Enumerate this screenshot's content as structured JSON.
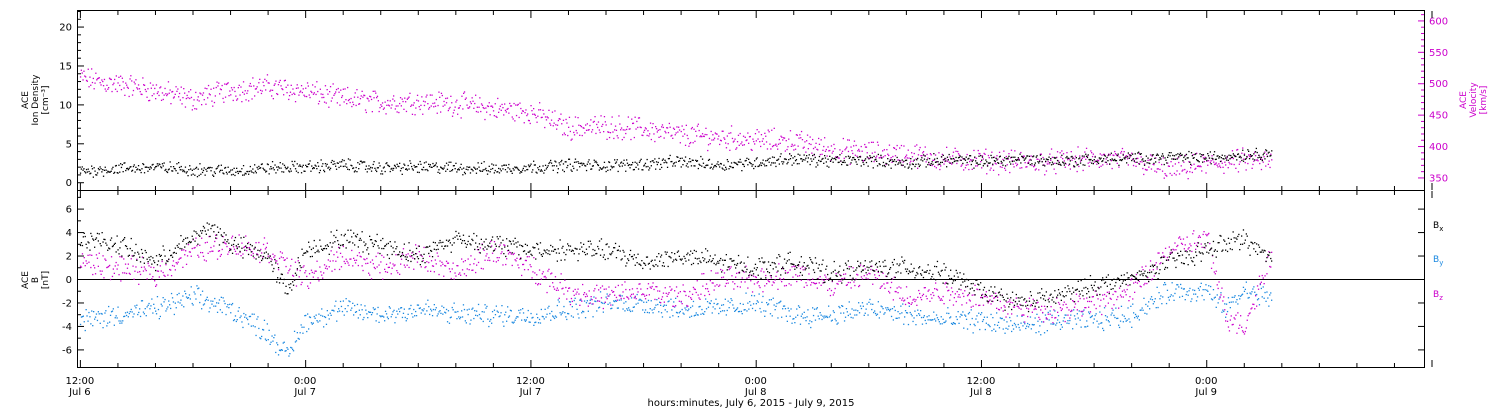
{
  "chart_data": [
    {
      "type": "scatter",
      "title": "",
      "xlabel": "hours:minutes, July 6, 2015 - July 9, 2015",
      "x_ticks": [
        {
          "time": "12:00",
          "date": "Jul 6",
          "hours": 12
        },
        {
          "time": "0:00",
          "date": "Jul 7",
          "hours": 24
        },
        {
          "time": "12:00",
          "date": "Jul 7",
          "hours": 36
        },
        {
          "time": "0:00",
          "date": "Jul 8",
          "hours": 48
        },
        {
          "time": "12:00",
          "date": "Jul 8",
          "hours": 60
        },
        {
          "time": "0:00",
          "date": "Jul 9",
          "hours": 72
        }
      ],
      "x_axis_note": "hours measured from Jul 6 00:00",
      "xlim_hours": [
        11.9,
        83.6
      ],
      "ylabel_left": [
        "ACE",
        "Ion Density",
        "[cm⁻³]"
      ],
      "ylabel_right": [
        "ACE",
        "Velocity",
        "[km/s]"
      ],
      "ylim_left": [
        -1,
        22
      ],
      "ylim_right": [
        330,
        615
      ],
      "yticks_left": [
        0,
        5,
        10,
        15,
        20
      ],
      "yticks_right": [
        350,
        400,
        450,
        500,
        550,
        600
      ],
      "series": [
        {
          "name": "ACE Ion Density",
          "axis": "left",
          "color": "#000000",
          "x_hours": [
            12,
            14,
            16,
            18,
            20,
            22,
            24,
            26,
            28,
            30,
            32,
            34,
            36,
            38,
            40,
            42,
            44,
            46,
            48,
            50,
            52,
            54,
            56,
            58,
            60,
            62,
            64,
            66,
            68,
            70,
            72,
            74,
            75.5
          ],
          "values": [
            1.5,
            1.8,
            2.0,
            1.7,
            1.5,
            1.9,
            2.0,
            2.3,
            1.9,
            2.0,
            1.9,
            1.8,
            2.0,
            2.3,
            2.2,
            2.4,
            2.7,
            2.3,
            2.6,
            3.1,
            2.8,
            2.9,
            2.5,
            3.0,
            2.7,
            3.1,
            2.8,
            3.0,
            3.1,
            3.3,
            3.2,
            3.6,
            3.8
          ]
        },
        {
          "name": "ACE Velocity",
          "axis": "right",
          "color": "#cc00cc",
          "x_hours": [
            12,
            13,
            15,
            16.5,
            18,
            20,
            22,
            24,
            25.5,
            28,
            30,
            32,
            34,
            36,
            38,
            40,
            42,
            44,
            46,
            48,
            50,
            52,
            54,
            56,
            58,
            60,
            62,
            64,
            66,
            68,
            70,
            71.5,
            72,
            74,
            75.5
          ],
          "values": [
            510,
            503,
            495,
            485,
            475,
            490,
            495,
            488,
            478,
            470,
            472,
            468,
            460,
            455,
            430,
            432,
            428,
            418,
            415,
            410,
            408,
            395,
            390,
            388,
            380,
            378,
            375,
            376,
            380,
            378,
            362,
            370,
            372,
            378,
            375
          ]
        }
      ]
    },
    {
      "type": "scatter",
      "title": "",
      "ylabel": [
        "ACE",
        "B",
        "[nT]"
      ],
      "ylim": [
        -7.5,
        7.5
      ],
      "yticks": [
        -6,
        -4,
        -2,
        0,
        2,
        4,
        6
      ],
      "zero_line": true,
      "legend": [
        "Bx",
        "By",
        "Bz"
      ],
      "legend_position": "right",
      "series": [
        {
          "name": "Bx",
          "color": "#000000",
          "x_hours": [
            12,
            14,
            16,
            18,
            19,
            20,
            22,
            23,
            24,
            26,
            28,
            30,
            32,
            34,
            36,
            38,
            40,
            42,
            44,
            46,
            48,
            50,
            52,
            54,
            56,
            58,
            60,
            62,
            64,
            66,
            68,
            70,
            72,
            74,
            75.5
          ],
          "values": [
            3.5,
            3.0,
            1.5,
            3.5,
            4.5,
            3.0,
            2.0,
            -1.0,
            2.5,
            3.5,
            3.0,
            2.0,
            3.5,
            3.0,
            2.5,
            2.5,
            2.5,
            1.5,
            2.0,
            1.5,
            1.0,
            1.5,
            0.5,
            1.0,
            1.0,
            0.5,
            -1.0,
            -2.0,
            -1.5,
            -0.5,
            0.0,
            1.5,
            2.5,
            3.5,
            1.5
          ]
        },
        {
          "name": "By",
          "color": "#1a88e0",
          "x_hours": [
            12,
            14,
            16,
            18,
            20,
            22,
            23,
            24,
            26,
            28,
            30,
            32,
            34,
            36,
            38,
            40,
            42,
            44,
            46,
            48,
            50,
            52,
            54,
            56,
            58,
            60,
            62,
            64,
            66,
            68,
            70,
            72,
            73,
            74,
            75.5
          ],
          "values": [
            -3.5,
            -3.0,
            -2.5,
            -1.5,
            -2.5,
            -4.5,
            -6.5,
            -3.5,
            -2.5,
            -3.0,
            -2.5,
            -3.0,
            -3.0,
            -3.0,
            -2.5,
            -2.0,
            -2.0,
            -2.5,
            -2.5,
            -2.0,
            -3.0,
            -3.0,
            -2.5,
            -3.0,
            -3.5,
            -3.5,
            -4.0,
            -3.5,
            -3.5,
            -3.0,
            -1.0,
            -1.0,
            -2.5,
            -1.0,
            -1.5
          ]
        },
        {
          "name": "Bz",
          "color": "#cc00cc",
          "x_hours": [
            12,
            14,
            16,
            18,
            20,
            22,
            24,
            26,
            28,
            30,
            32,
            34,
            36,
            38,
            40,
            42,
            44,
            46,
            48,
            50,
            52,
            54,
            56,
            58,
            60,
            62,
            64,
            66,
            68,
            70,
            72,
            73,
            74,
            75.5
          ],
          "values": [
            1.5,
            1.0,
            0.5,
            2.5,
            3.0,
            2.5,
            0.0,
            2.0,
            1.0,
            2.0,
            0.5,
            2.5,
            1.0,
            -1.0,
            -1.5,
            -1.0,
            -1.5,
            0.0,
            0.0,
            0.5,
            -0.5,
            0.5,
            -1.5,
            -1.0,
            -1.5,
            -2.5,
            -2.5,
            -2.0,
            -1.0,
            2.5,
            3.5,
            -3.0,
            -4.0,
            2.5
          ]
        }
      ]
    }
  ]
}
